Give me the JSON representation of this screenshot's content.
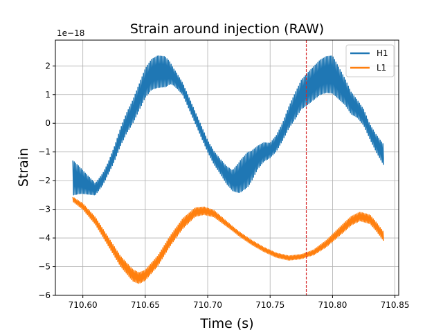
{
  "chart_data": {
    "type": "line",
    "title": "Strain around injection (RAW)",
    "xlabel": "Time (s)",
    "ylabel": "Strain",
    "y_offset_text": "1e−18",
    "xlim": [
      710.578,
      710.853
    ],
    "ylim": [
      -6,
      2.9
    ],
    "grid": true,
    "legend_position": "top-right",
    "x_ticks": [
      710.6,
      710.65,
      710.7,
      710.75,
      710.8,
      710.85
    ],
    "x_tick_labels": [
      "710.60",
      "710.65",
      "710.70",
      "710.75",
      "710.80",
      "710.85"
    ],
    "y_ticks": [
      -6,
      -5,
      -4,
      -3,
      -2,
      -1,
      0,
      1,
      2
    ],
    "y_tick_labels": [
      "−6",
      "−5",
      "−4",
      "−3",
      "−2",
      "−1",
      "0",
      "1",
      "2"
    ],
    "injection_marker": {
      "x": 710.779,
      "color": "#d62728",
      "style": "dashed"
    },
    "series": [
      {
        "name": "H1",
        "color": "#1f77b4",
        "band_width": {
          "x": [
            710.592,
            710.6,
            710.61,
            710.62,
            710.63,
            710.64,
            710.65,
            710.66,
            710.666,
            710.672,
            710.68,
            710.69,
            710.7,
            710.71,
            710.72,
            710.726,
            710.732,
            710.74,
            710.75,
            710.76,
            710.77,
            710.78,
            710.79,
            710.8,
            710.81,
            710.82,
            710.83,
            710.841
          ],
          "w": [
            1.2,
            0.8,
            0.4,
            0.4,
            0.6,
            0.8,
            1.0,
            1.1,
            1.05,
            0.6,
            0.4,
            0.4,
            0.4,
            0.5,
            0.7,
            1.1,
            1.2,
            0.8,
            0.5,
            0.6,
            0.9,
            1.1,
            1.2,
            1.3,
            0.9,
            0.6,
            0.5,
            0.7
          ]
        },
        "x": [
          710.592,
          710.598,
          710.604,
          710.61,
          710.616,
          710.62,
          710.625,
          710.63,
          710.635,
          710.64,
          710.645,
          710.65,
          710.655,
          710.66,
          710.665,
          710.67,
          710.675,
          710.68,
          710.685,
          710.69,
          710.695,
          710.7,
          710.705,
          710.71,
          710.715,
          710.72,
          710.725,
          710.73,
          710.735,
          710.74,
          710.745,
          710.75,
          710.755,
          710.76,
          710.765,
          710.77,
          710.775,
          710.78,
          710.785,
          710.79,
          710.795,
          710.8,
          710.805,
          710.81,
          710.815,
          710.82,
          710.825,
          710.83,
          710.835,
          710.841
        ],
        "y": [
          -1.9,
          -2.0,
          -2.15,
          -2.3,
          -1.95,
          -1.6,
          -1.1,
          -0.5,
          0.0,
          0.4,
          0.9,
          1.4,
          1.7,
          1.8,
          1.8,
          1.75,
          1.5,
          1.2,
          0.7,
          0.2,
          -0.3,
          -0.8,
          -1.2,
          -1.5,
          -1.8,
          -2.0,
          -1.9,
          -1.7,
          -1.5,
          -1.2,
          -1.0,
          -0.95,
          -0.7,
          -0.3,
          0.2,
          0.6,
          1.0,
          1.2,
          1.4,
          1.6,
          1.7,
          1.7,
          1.4,
          1.1,
          0.7,
          0.5,
          0.2,
          -0.3,
          -0.7,
          -1.1
        ]
      },
      {
        "name": "L1",
        "color": "#ff7f0e",
        "band_width": {
          "x": [
            710.592,
            710.6,
            710.61,
            710.62,
            710.63,
            710.64,
            710.65,
            710.66,
            710.67,
            710.68,
            710.69,
            710.7,
            710.71,
            710.72,
            710.73,
            710.74,
            710.75,
            710.76,
            710.77,
            710.78,
            710.79,
            710.8,
            710.81,
            710.82,
            710.83,
            710.841
          ],
          "w": [
            0.15,
            0.2,
            0.25,
            0.3,
            0.35,
            0.4,
            0.35,
            0.35,
            0.35,
            0.35,
            0.3,
            0.25,
            0.2,
            0.15,
            0.15,
            0.15,
            0.15,
            0.15,
            0.15,
            0.15,
            0.2,
            0.25,
            0.3,
            0.3,
            0.3,
            0.3
          ]
        },
        "x": [
          710.592,
          710.6,
          710.61,
          710.62,
          710.63,
          710.64,
          710.645,
          710.65,
          710.66,
          710.67,
          710.68,
          710.69,
          710.697,
          710.705,
          710.715,
          710.725,
          710.735,
          710.745,
          710.755,
          710.765,
          710.775,
          710.785,
          710.795,
          710.805,
          710.815,
          710.822,
          710.83,
          710.835,
          710.841
        ],
        "y": [
          -2.65,
          -2.9,
          -3.4,
          -4.1,
          -4.8,
          -5.3,
          -5.4,
          -5.3,
          -4.8,
          -4.1,
          -3.5,
          -3.1,
          -3.05,
          -3.15,
          -3.5,
          -3.85,
          -4.15,
          -4.4,
          -4.6,
          -4.7,
          -4.65,
          -4.5,
          -4.2,
          -3.8,
          -3.4,
          -3.25,
          -3.35,
          -3.6,
          -3.95
        ]
      }
    ]
  }
}
